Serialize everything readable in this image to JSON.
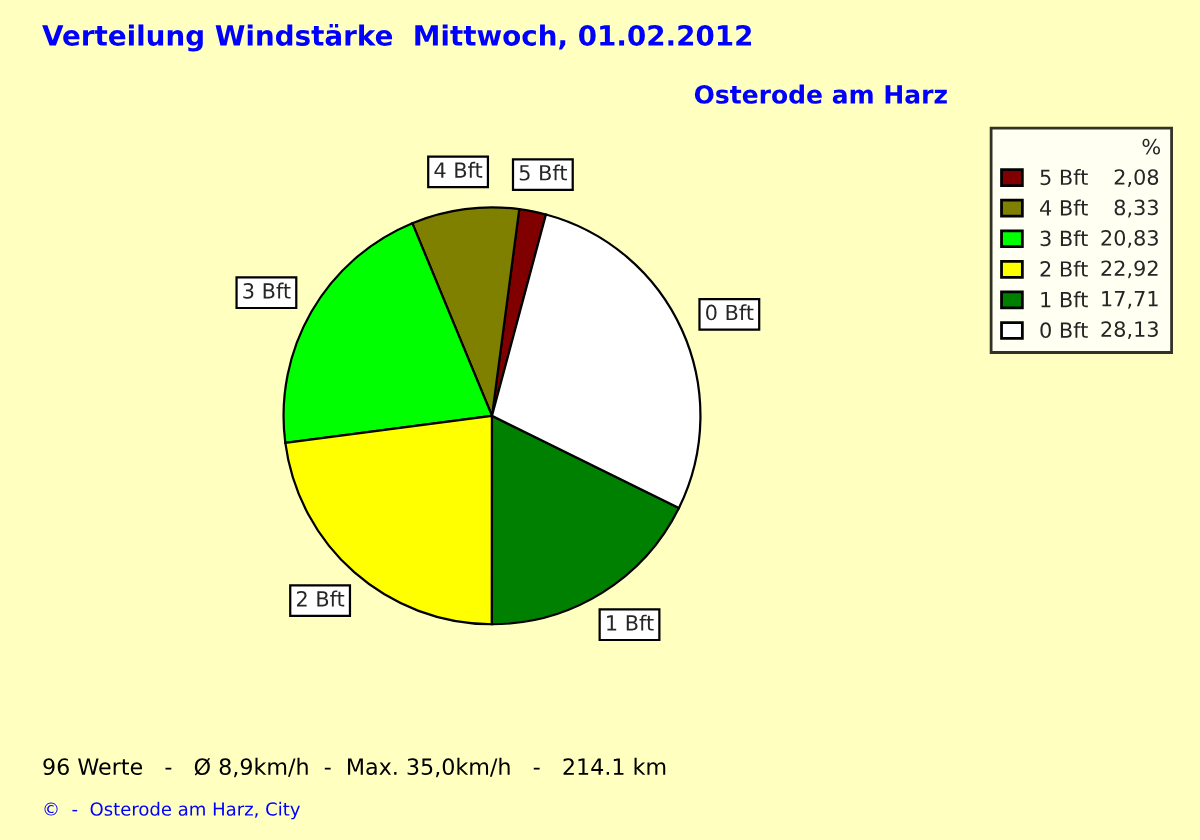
{
  "chart_data": {
    "type": "pie",
    "title": "Verteilung Windstärke  Mittwoch, 01.02.2012",
    "subtitle": "Osterode am Harz",
    "legend_title": "%",
    "categories": [
      "5 Bft",
      "4 Bft",
      "3 Bft",
      "2 Bft",
      "1 Bft",
      "0 Bft"
    ],
    "values": [
      2.08,
      8.33,
      20.83,
      22.92,
      17.71,
      28.13
    ],
    "value_labels": [
      "2,08",
      "8,33",
      "20,83",
      "22,92",
      "17,71",
      "28,13"
    ],
    "colors": [
      "#800000",
      "#808000",
      "#00ff00",
      "#ffff00",
      "#008000",
      "#ffffff"
    ],
    "legend": "top right",
    "annotations": [
      "96 Werte   -   Ø 8,9km/h  -  Max. 35,0km/h   -   214.1 km",
      "©  -  Osterode am Harz, City"
    ]
  }
}
